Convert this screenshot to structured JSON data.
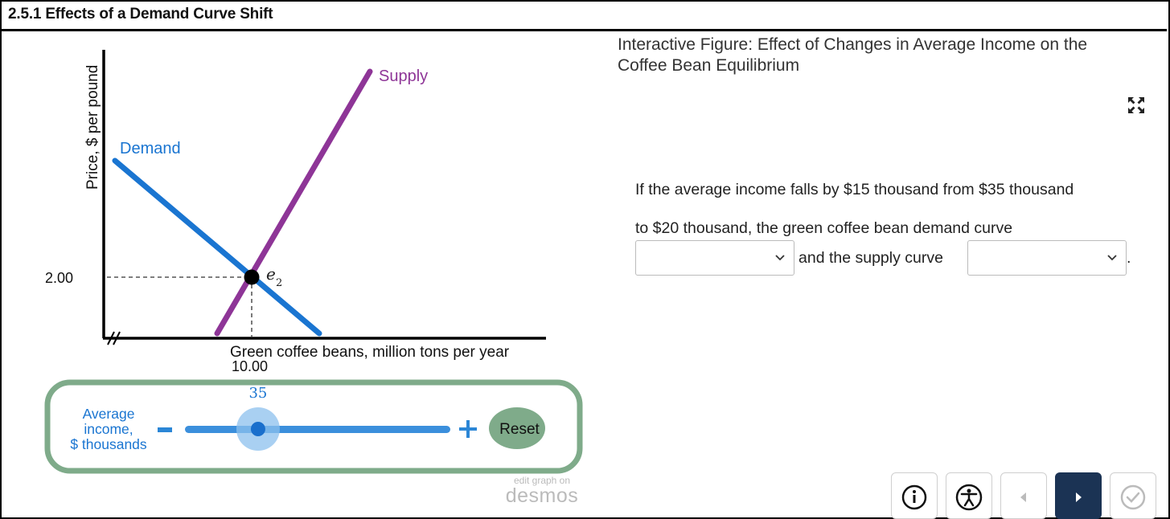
{
  "header": {
    "title": "2.5.1 Effects of a Demand Curve Shift"
  },
  "figure": {
    "y_axis_label": "Price, $ per pound",
    "x_axis_label": "Green coffee beans, million tons per year",
    "price_value": "2.00",
    "quantity_value": "10.00",
    "supply_label": "Supply",
    "demand_label": "Demand",
    "equilibrium_label": "e",
    "equilibrium_subscript": "2",
    "colors": {
      "supply": "#8e3597",
      "demand": "#1a75d1",
      "panel_border": "#7fab8a",
      "slider": "#3b8fdc"
    }
  },
  "slider": {
    "label_line1": "Average",
    "label_line2": "income,",
    "label_line3": "$ thousands",
    "value": "35",
    "minus_label": "-",
    "plus_label": "+",
    "reset_label": "Reset",
    "position_fraction": 0.27
  },
  "desmos": {
    "edit_text": "edit graph on",
    "brand": "desmos"
  },
  "panel": {
    "title_line1": "Interactive Figure: Effect of Changes in Average Income on the",
    "title_line2": "Coffee Bean Equilibrium",
    "question_line1": "If the average income falls by $15 thousand from $35 thousand",
    "question_line2": "to $20 thousand, the green coffee bean demand curve",
    "and_supply": "and the supply curve",
    "period": ".",
    "demand_select_value": "",
    "supply_select_value": ""
  },
  "nav": {
    "icons": [
      "info-icon",
      "accessibility-icon",
      "previous-icon",
      "next-icon",
      "check-icon"
    ]
  }
}
